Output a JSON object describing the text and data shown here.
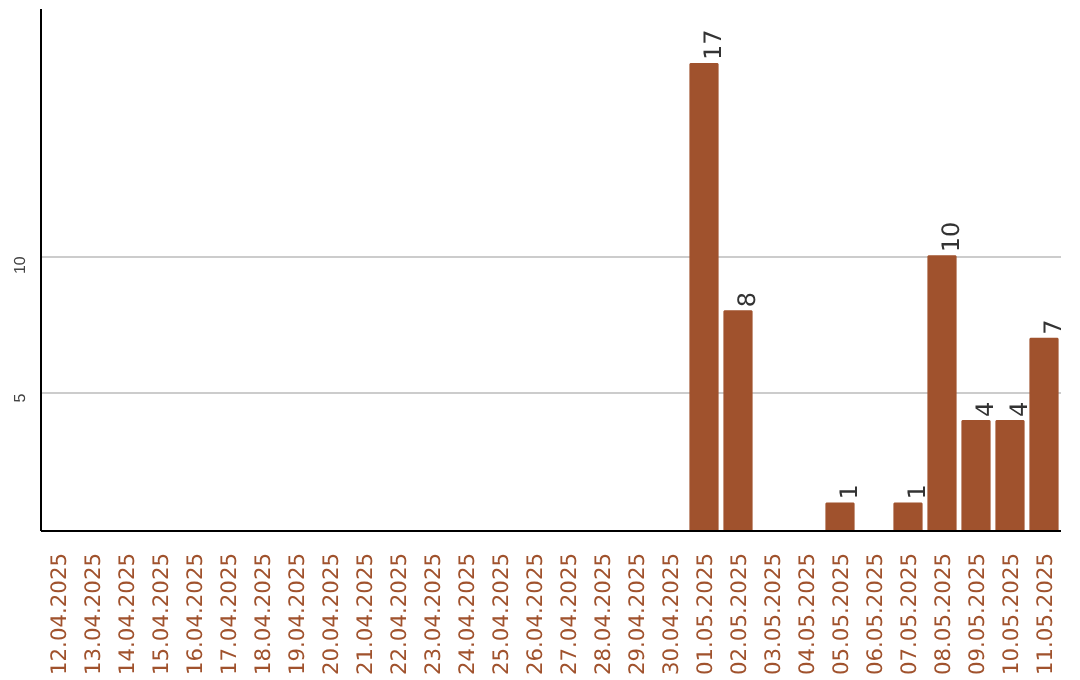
{
  "chart_data": {
    "type": "bar",
    "categories": [
      "12.04.2025",
      "13.04.2025",
      "14.04.2025",
      "15.04.2025",
      "16.04.2025",
      "17.04.2025",
      "18.04.2025",
      "19.04.2025",
      "20.04.2025",
      "21.04.2025",
      "22.04.2025",
      "23.04.2025",
      "24.04.2025",
      "25.04.2025",
      "26.04.2025",
      "27.04.2025",
      "28.04.2025",
      "29.04.2025",
      "30.04.2025",
      "01.05.2025",
      "02.05.2025",
      "03.05.2025",
      "04.05.2025",
      "05.05.2025",
      "06.05.2025",
      "07.05.2025",
      "08.05.2025",
      "09.05.2025",
      "10.05.2025",
      "11.05.2025"
    ],
    "values": [
      0,
      0,
      0,
      0,
      0,
      0,
      0,
      0,
      0,
      0,
      0,
      0,
      0,
      0,
      0,
      0,
      0,
      0,
      0,
      17,
      8,
      0,
      0,
      1,
      0,
      1,
      10,
      4,
      4,
      7
    ],
    "value_labels": [
      null,
      null,
      null,
      null,
      null,
      null,
      null,
      null,
      null,
      null,
      null,
      null,
      null,
      null,
      null,
      null,
      null,
      null,
      null,
      "17",
      "8",
      null,
      null,
      "1",
      null,
      "1",
      "10",
      "4",
      "4",
      "7"
    ],
    "color": "#a0522d",
    "ylim": [
      0,
      19
    ],
    "yticks": [
      5,
      10
    ],
    "grid": "y"
  }
}
